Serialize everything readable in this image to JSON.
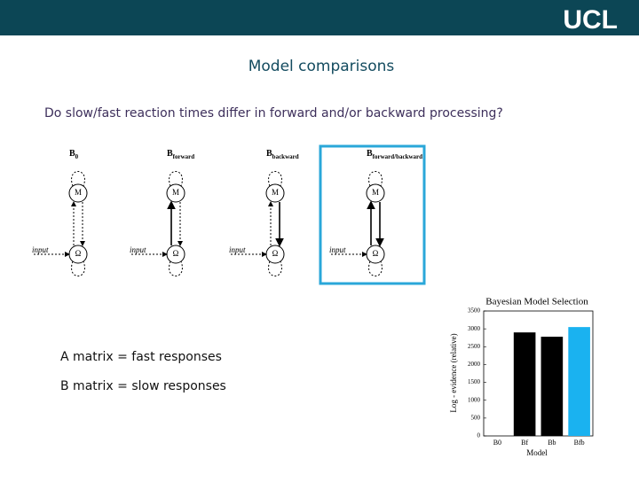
{
  "header": {
    "logo": "UCL"
  },
  "title": "Model comparisons",
  "question": "Do slow/fast reaction times differ in forward and/or backward processing?",
  "diagrams": [
    {
      "name": "B",
      "sub": "0",
      "top": "M",
      "bottom": "Ω",
      "input": "input",
      "style": "none"
    },
    {
      "name": "B",
      "sub": "forward",
      "top": "M",
      "bottom": "Ω",
      "input": "input",
      "style": "forward"
    },
    {
      "name": "B",
      "sub": "backward",
      "top": "M",
      "bottom": "Ω",
      "input": "input",
      "style": "backward"
    },
    {
      "name": "B",
      "sub": "forward/backward",
      "top": "M",
      "bottom": "Ω",
      "input": "input",
      "style": "both"
    }
  ],
  "notes": [
    "A matrix = fast responses",
    "B matrix = slow responses"
  ],
  "chart_data": {
    "type": "bar",
    "title": "Bayesian Model Selection",
    "x_label": "Model",
    "y_label": "Log - evidence (relative)",
    "categories": [
      "B0",
      "Bf",
      "Bb",
      "Bfb"
    ],
    "values": [
      0,
      2900,
      2780,
      3050
    ],
    "colors": [
      "#000000",
      "#000000",
      "#000000",
      "#1ab2f0"
    ],
    "ylim": [
      0,
      3500
    ],
    "yticks": [
      0,
      500,
      1000,
      1500,
      2000,
      2500,
      3000,
      3500
    ]
  }
}
